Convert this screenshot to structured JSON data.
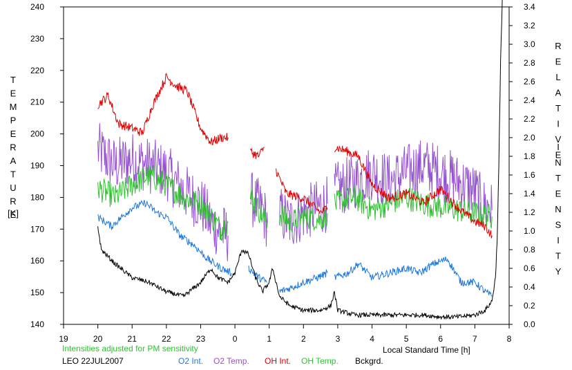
{
  "chart_data": {
    "type": "line",
    "left_axis": {
      "label_letters": [
        "T",
        "E",
        "M",
        "P",
        "E",
        "R",
        "A",
        "T",
        "U",
        "R",
        "E"
      ],
      "unit": "[K]",
      "range": [
        140,
        240
      ],
      "ticks": [
        "140",
        "150",
        "160",
        "170",
        "180",
        "190",
        "200",
        "210",
        "220",
        "230",
        "240"
      ]
    },
    "right_axis": {
      "label1_letters": [
        "R",
        "E",
        "L",
        "A",
        "T",
        "I",
        "V",
        "E"
      ],
      "label2_letters": [
        "I",
        "N",
        "T",
        "E",
        "N",
        "S",
        "I",
        "T",
        "Y"
      ],
      "range": [
        0,
        3.4
      ],
      "ticks": [
        "0.0",
        "0.2",
        "0.4",
        "0.6",
        "0.8",
        "1.0",
        "1.2",
        "1.4",
        "1.6",
        "1.8",
        "2.0",
        "2.2",
        "2.4",
        "2.6",
        "2.8",
        "3.0",
        "3.2",
        "3.4"
      ]
    },
    "x_axis": {
      "label": "Local Standard Time [h]",
      "range": [
        19,
        32
      ],
      "ticks": [
        "19",
        "20",
        "21",
        "22",
        "23",
        "0",
        "1",
        "2",
        "3",
        "4",
        "5",
        "6",
        "7",
        "8"
      ]
    },
    "note": "Intensities adjusted for PM sensitivity",
    "station": "LEO 22JUL2007",
    "legend": [
      {
        "key": "o2i",
        "label": "O2 Int.",
        "color": "#1e78dc"
      },
      {
        "key": "o2t",
        "label": "O2 Temp.",
        "color": "#9650d2"
      },
      {
        "key": "ohi",
        "label": "OH Int.",
        "color": "#e00000"
      },
      {
        "key": "oht",
        "label": "OH Temp.",
        "color": "#30c030"
      },
      {
        "key": "bkg",
        "label": "Bckgrd.",
        "color": "#000000"
      }
    ],
    "series": [
      {
        "key": "o2t",
        "axis": "left",
        "noise": 9,
        "segments": [
          [
            [
              20.0,
              195
            ],
            [
              20.5,
              190
            ],
            [
              21.0,
              192
            ],
            [
              21.5,
              190
            ],
            [
              22.0,
              188
            ],
            [
              22.5,
              182
            ],
            [
              23.0,
              178
            ],
            [
              23.3,
              172
            ],
            [
              23.5,
              170
            ],
            [
              23.8,
              168
            ]
          ],
          [
            [
              24.45,
              180
            ],
            [
              24.6,
              178
            ],
            [
              24.8,
              176
            ],
            [
              24.95,
              172
            ]
          ],
          [
            [
              25.3,
              175
            ],
            [
              25.6,
              172
            ],
            [
              26.0,
              175
            ],
            [
              26.5,
              177
            ],
            [
              26.7,
              178
            ]
          ],
          [
            [
              26.9,
              182
            ],
            [
              27.5,
              185
            ],
            [
              28.0,
              188
            ],
            [
              28.5,
              185
            ],
            [
              29.0,
              188
            ],
            [
              29.5,
              190
            ],
            [
              30.0,
              188
            ],
            [
              30.5,
              185
            ],
            [
              31.0,
              182
            ],
            [
              31.2,
              178
            ],
            [
              31.5,
              176
            ]
          ]
        ]
      },
      {
        "key": "oht",
        "axis": "left",
        "noise": 4,
        "segments": [
          [
            [
              20.0,
              183
            ],
            [
              20.5,
              180
            ],
            [
              21.0,
              184
            ],
            [
              21.5,
              187
            ],
            [
              22.0,
              184
            ],
            [
              22.5,
              180
            ],
            [
              23.0,
              178
            ],
            [
              23.3,
              174
            ],
            [
              23.6,
              170
            ],
            [
              23.8,
              172
            ]
          ],
          [
            [
              24.45,
              180
            ],
            [
              24.7,
              176
            ],
            [
              24.95,
              172
            ]
          ],
          [
            [
              25.3,
              175
            ],
            [
              25.6,
              172
            ],
            [
              26.0,
              174
            ],
            [
              26.5,
              173
            ],
            [
              26.7,
              175
            ]
          ],
          [
            [
              26.9,
              178
            ],
            [
              27.5,
              180
            ],
            [
              28.0,
              176
            ],
            [
              28.5,
              178
            ],
            [
              29.0,
              180
            ],
            [
              29.5,
              178
            ],
            [
              30.0,
              177
            ],
            [
              30.5,
              176
            ],
            [
              31.0,
              175
            ],
            [
              31.5,
              174
            ]
          ]
        ]
      },
      {
        "key": "ohi",
        "axis": "right",
        "noise": 0.05,
        "segments": [
          [
            [
              20.0,
              2.35
            ],
            [
              20.3,
              2.45
            ],
            [
              20.6,
              2.15
            ],
            [
              21.0,
              2.1
            ],
            [
              21.3,
              2.05
            ],
            [
              21.6,
              2.35
            ],
            [
              22.0,
              2.65
            ],
            [
              22.3,
              2.55
            ],
            [
              22.6,
              2.5
            ],
            [
              23.0,
              2.1
            ],
            [
              23.3,
              1.95
            ],
            [
              23.6,
              2.0
            ],
            [
              23.8,
              2.0
            ]
          ],
          [
            [
              24.45,
              1.85
            ],
            [
              24.7,
              1.8
            ],
            [
              24.85,
              1.9
            ]
          ],
          [
            [
              25.2,
              1.65
            ],
            [
              25.5,
              1.4
            ],
            [
              26.0,
              1.35
            ],
            [
              26.5,
              1.2
            ],
            [
              26.7,
              1.25
            ]
          ],
          [
            [
              26.9,
              1.9
            ],
            [
              27.3,
              1.85
            ],
            [
              27.6,
              1.8
            ],
            [
              28.0,
              1.5
            ],
            [
              28.5,
              1.35
            ],
            [
              29.0,
              1.4
            ],
            [
              29.5,
              1.3
            ],
            [
              30.0,
              1.45
            ],
            [
              30.5,
              1.25
            ],
            [
              31.0,
              1.1
            ],
            [
              31.3,
              1.05
            ],
            [
              31.5,
              0.95
            ]
          ]
        ]
      },
      {
        "key": "o2i",
        "axis": "right",
        "noise": 0.04,
        "segments": [
          [
            [
              20.0,
              1.15
            ],
            [
              20.4,
              1.05
            ],
            [
              20.7,
              1.15
            ],
            [
              21.0,
              1.25
            ],
            [
              21.4,
              1.3
            ],
            [
              21.7,
              1.2
            ],
            [
              22.0,
              1.15
            ],
            [
              22.4,
              0.95
            ],
            [
              22.8,
              0.85
            ],
            [
              23.2,
              0.7
            ],
            [
              23.6,
              0.6
            ],
            [
              23.9,
              0.55
            ]
          ],
          [
            [
              24.4,
              0.6
            ],
            [
              24.7,
              0.5
            ],
            [
              24.95,
              0.45
            ]
          ],
          [
            [
              25.3,
              0.35
            ],
            [
              25.7,
              0.4
            ],
            [
              26.0,
              0.45
            ],
            [
              26.4,
              0.5
            ],
            [
              26.7,
              0.55
            ]
          ],
          [
            [
              26.9,
              0.5
            ],
            [
              27.3,
              0.55
            ],
            [
              27.6,
              0.65
            ],
            [
              28.0,
              0.5
            ],
            [
              28.5,
              0.55
            ],
            [
              29.0,
              0.6
            ],
            [
              29.4,
              0.55
            ],
            [
              29.8,
              0.65
            ],
            [
              30.2,
              0.7
            ],
            [
              30.6,
              0.45
            ],
            [
              31.0,
              0.45
            ],
            [
              31.3,
              0.35
            ],
            [
              31.5,
              0.3
            ]
          ]
        ]
      },
      {
        "key": "bkg",
        "axis": "right",
        "noise": 0.025,
        "segments": [
          [
            [
              20.0,
              1.05
            ],
            [
              20.1,
              0.8
            ],
            [
              20.5,
              0.65
            ],
            [
              21.0,
              0.5
            ],
            [
              21.5,
              0.45
            ],
            [
              22.0,
              0.35
            ],
            [
              22.5,
              0.3
            ],
            [
              23.0,
              0.45
            ],
            [
              23.3,
              0.6
            ],
            [
              23.5,
              0.5
            ],
            [
              23.8,
              0.45
            ],
            [
              24.0,
              0.55
            ],
            [
              24.2,
              0.8
            ],
            [
              24.4,
              0.75
            ],
            [
              24.6,
              0.5
            ],
            [
              24.8,
              0.35
            ],
            [
              25.0,
              0.45
            ],
            [
              25.1,
              0.6
            ],
            [
              25.3,
              0.3
            ],
            [
              25.6,
              0.2
            ],
            [
              26.0,
              0.15
            ],
            [
              26.5,
              0.15
            ],
            [
              26.8,
              0.2
            ],
            [
              26.9,
              0.35
            ],
            [
              27.0,
              0.15
            ],
            [
              27.5,
              0.1
            ],
            [
              28.0,
              0.1
            ],
            [
              28.5,
              0.1
            ],
            [
              29.0,
              0.1
            ],
            [
              29.5,
              0.1
            ],
            [
              30.0,
              0.08
            ],
            [
              30.5,
              0.08
            ],
            [
              31.0,
              0.1
            ],
            [
              31.3,
              0.15
            ],
            [
              31.5,
              0.25
            ],
            [
              31.6,
              0.5
            ],
            [
              31.65,
              0.9
            ],
            [
              31.7,
              1.7
            ],
            [
              31.75,
              2.8
            ],
            [
              31.8,
              3.5
            ]
          ]
        ]
      }
    ]
  }
}
